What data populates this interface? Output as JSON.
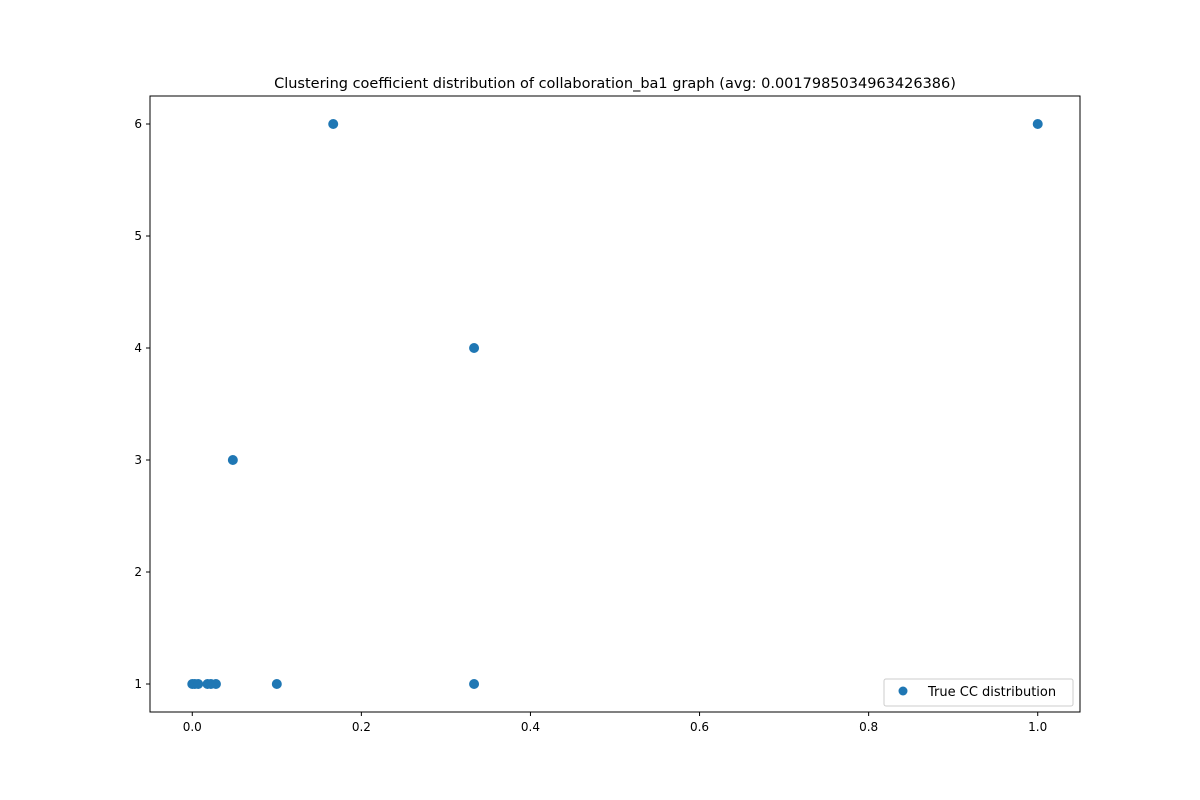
{
  "chart_data": {
    "type": "scatter",
    "title": "Clustering coefficient distribution of collaboration_ba1 graph (avg: 0.0017985034963426386)",
    "xlabel": "",
    "ylabel": "",
    "xlim": [
      -0.05,
      1.05
    ],
    "ylim": [
      0.75,
      6.25
    ],
    "xticks": [
      0.0,
      0.2,
      0.4,
      0.6,
      0.8,
      1.0
    ],
    "xtick_labels": [
      "0.0",
      "0.2",
      "0.4",
      "0.6",
      "0.8",
      "1.0"
    ],
    "yticks": [
      1,
      2,
      3,
      4,
      5,
      6
    ],
    "ytick_labels": [
      "1",
      "2",
      "3",
      "4",
      "5",
      "6"
    ],
    "grid": false,
    "legend_position": "lower-right",
    "series": [
      {
        "name": "True CC distribution",
        "color": "#1f77b4",
        "points": [
          {
            "x": 0.0,
            "y": 1
          },
          {
            "x": 0.003,
            "y": 1
          },
          {
            "x": 0.007,
            "y": 1
          },
          {
            "x": 0.018,
            "y": 1
          },
          {
            "x": 0.022,
            "y": 1
          },
          {
            "x": 0.028,
            "y": 1
          },
          {
            "x": 0.048,
            "y": 3
          },
          {
            "x": 0.1,
            "y": 1
          },
          {
            "x": 0.1667,
            "y": 6
          },
          {
            "x": 0.3333,
            "y": 4
          },
          {
            "x": 0.3333,
            "y": 1
          },
          {
            "x": 1.0,
            "y": 6
          }
        ]
      }
    ]
  }
}
